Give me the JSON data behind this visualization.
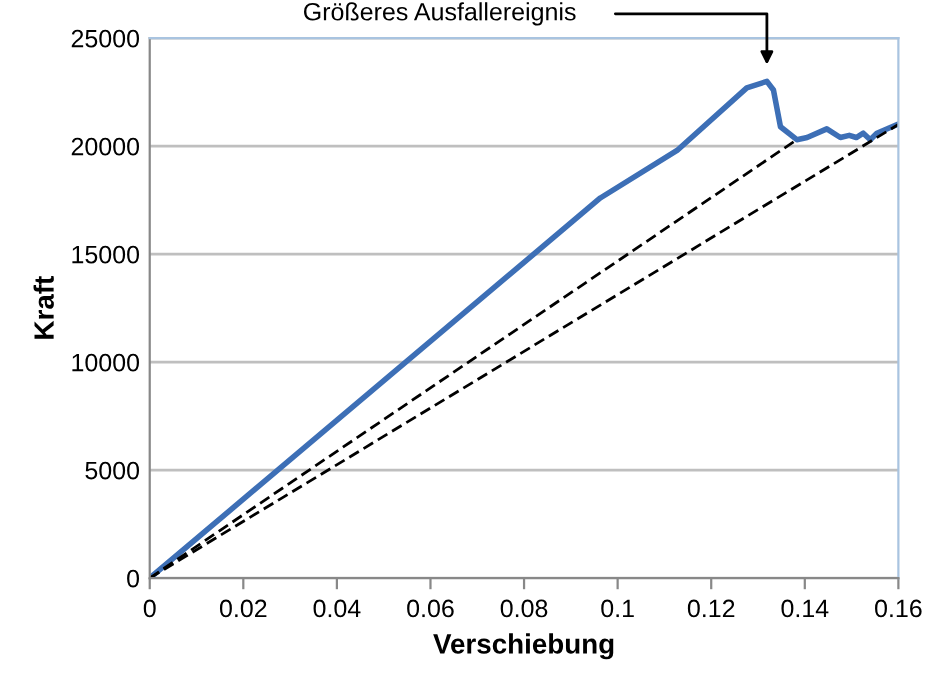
{
  "chart_data": {
    "type": "line",
    "xlabel": "Verschiebung",
    "ylabel": "Kraft",
    "xlim": [
      0,
      0.16
    ],
    "xticks": [
      0,
      0.02,
      0.04,
      0.06,
      0.08,
      0.1,
      0.12,
      0.14,
      0.16
    ],
    "ylim": [
      0,
      25000
    ],
    "yticks": [
      0,
      5000,
      10000,
      15000,
      20000,
      25000
    ],
    "grid": "y",
    "legend": false,
    "marker": "none",
    "annotations": [
      "Größeres Ausfallereignis"
    ],
    "series": [
      {
        "color": "#3d6fb6",
        "line_style": "solid",
        "x": [
          0,
          0.0963,
          0.1127,
          0.1276,
          0.1319,
          0.1333,
          0.1348,
          0.1383,
          0.1405,
          0.1447,
          0.1476,
          0.1495,
          0.151,
          0.1525,
          0.154,
          0.1554,
          0.1597
        ],
        "values": [
          0,
          17600,
          19800,
          22700,
          23000,
          22600,
          20900,
          20300,
          20400,
          20800,
          20400,
          20500,
          20400,
          20600,
          20300,
          20600,
          21000
        ]
      },
      {
        "color": "#000000",
        "line_style": "dashed",
        "x": [
          0,
          0.1376
        ],
        "values": [
          0,
          20200
        ]
      },
      {
        "color": "#000000",
        "line_style": "dashed",
        "x": [
          0,
          0.16
        ],
        "values": [
          0,
          21000
        ]
      }
    ]
  }
}
